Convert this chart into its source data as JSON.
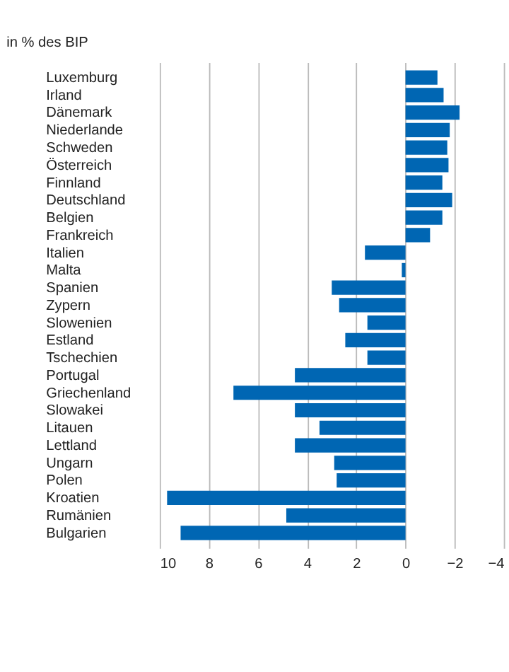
{
  "chart_data": {
    "type": "bar",
    "orientation": "horizontal",
    "title": "in % des BIP",
    "categories": [
      "Luxemburg",
      "Irland",
      "Dänemark",
      "Niederlande",
      "Schweden",
      "Österreich",
      "Finnland",
      "Deutschland",
      "Belgien",
      "Frankreich",
      "Italien",
      "Malta",
      "Spanien",
      "Zypern",
      "Slowenien",
      "Estland",
      "Tschechien",
      "Portugal",
      "Griechenland",
      "Slowakei",
      "Litauen",
      "Lettland",
      "Ungarn",
      "Polen",
      "Kroatien",
      "Rumänien",
      "Bulgarien"
    ],
    "values": [
      -1.3,
      -1.55,
      -2.2,
      -1.8,
      -1.7,
      -1.75,
      -1.5,
      -1.9,
      -1.5,
      -1.0,
      1.65,
      0.15,
      3.0,
      2.7,
      1.55,
      2.45,
      1.55,
      4.5,
      7.0,
      4.5,
      3.5,
      4.5,
      2.9,
      2.8,
      9.7,
      4.85,
      9.15
    ],
    "color": "#0066b3",
    "xlim": [
      10,
      -4
    ],
    "xticks": [
      10,
      8,
      6,
      4,
      2,
      0,
      -2,
      -4
    ],
    "grid": "x"
  }
}
